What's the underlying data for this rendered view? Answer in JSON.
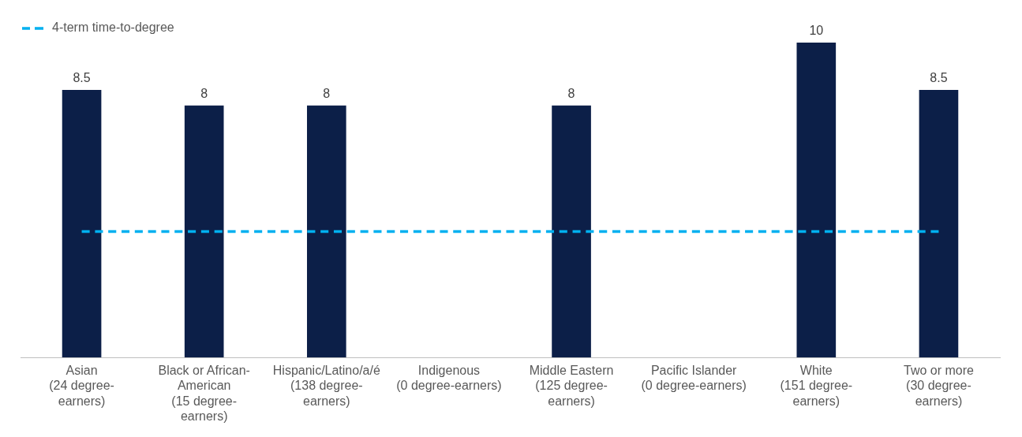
{
  "chart_data": {
    "type": "bar",
    "categories": [
      "Asian\n(24 degree-\nearners)",
      "Black or African-\nAmerican\n(15 degree-\nearners)",
      "Hispanic/Latino/a/é\n(138 degree-\nearners)",
      "Indigenous\n(0 degree-earners)",
      "Middle Eastern\n(125 degree-\nearners)",
      "Pacific Islander\n(0 degree-earners)",
      "White\n(151 degree-\nearners)",
      "Two or more\n(30 degree-\nearners)"
    ],
    "series": [
      {
        "color": "#0c1f48",
        "values": [
          8.5,
          8,
          8,
          null,
          8,
          null,
          10,
          8.5
        ],
        "value_labels": [
          "8.5",
          "8",
          "8",
          null,
          "8",
          null,
          "10",
          "8.5"
        ]
      },
      {
        "type": "line",
        "name": "4-term time-to-degree",
        "color": "#00b0f0",
        "line_style": "dashed",
        "marker": "none",
        "values": [
          4,
          4,
          4,
          4,
          4,
          4,
          4,
          4
        ]
      }
    ],
    "ylim": [
      0,
      10
    ],
    "tick_labels": "x",
    "grid": false,
    "legend": "top left"
  }
}
